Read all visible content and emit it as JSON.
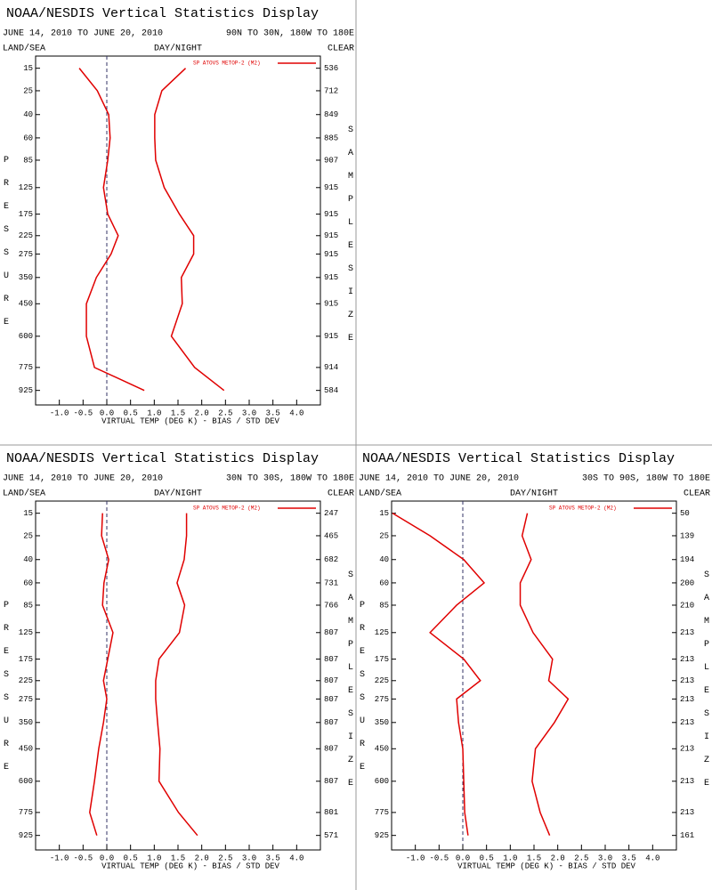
{
  "charts": [
    {
      "chart_data": {
        "type": "line",
        "title": "NOAA/NESDIS Vertical Statistics Display",
        "date_range": "JUNE 14, 2010 TO JUNE 20, 2010",
        "region": "90N TO 30N, 180W TO 180E",
        "land_sea": "LAND/SEA",
        "day_night": "DAY/NIGHT",
        "clear": "CLEAR",
        "ylabel": "PRESSURE",
        "y2label": "SAMPLE SIZE",
        "xlabel": "VIRTUAL TEMP (DEG K) - BIAS / STD DEV",
        "xlim": [
          -1.5,
          4.5
        ],
        "xticks": [
          {
            "value": -1,
            "label": "-1.0"
          },
          -0.5,
          {
            "value": 0,
            "label": "0.0"
          },
          0.5,
          {
            "value": 1,
            "label": "1.0"
          },
          1.5,
          {
            "value": 2,
            "label": "2.0"
          },
          2.5,
          {
            "value": 3,
            "label": "3.0"
          },
          3.5,
          {
            "value": 4,
            "label": "4.0"
          }
        ],
        "ylim": [
          11,
          1030
        ],
        "yticks": [
          15,
          25,
          40,
          60,
          85,
          125,
          175,
          225,
          275,
          350,
          450,
          600,
          775,
          925
        ],
        "sample_sizes": [
          536,
          712,
          849,
          885,
          907,
          915,
          915,
          915,
          915,
          915,
          915,
          915,
          914,
          584
        ],
        "series": [
          {
            "name": "SP ATOVS METOP-2 (M2)",
            "color": "#e00000",
            "values": [
              -0.58,
              -0.2,
              0.04,
              0.07,
              0.02,
              -0.07,
              0.02,
              0.24,
              0.09,
              -0.22,
              -0.43,
              -0.43,
              -0.26,
              0.79
            ]
          },
          {
            "color": "#e00000",
            "values": [
              1.66,
              1.16,
              1.01,
              1.01,
              1.03,
              1.21,
              1.53,
              1.83,
              1.83,
              1.57,
              1.59,
              1.36,
              1.85,
              2.47
            ]
          }
        ]
      }
    },
    {
      "chart_data": {
        "type": "line",
        "title": "NOAA/NESDIS Vertical Statistics Display",
        "date_range": "JUNE 14, 2010 TO JUNE 20, 2010",
        "region": "30N TO 30S, 180W TO 180E",
        "land_sea": "LAND/SEA",
        "day_night": "DAY/NIGHT",
        "clear": "CLEAR",
        "ylabel": "PRESSURE",
        "y2label": "SAMPLE SIZE",
        "xlabel": "VIRTUAL TEMP (DEG K) - BIAS / STD DEV",
        "xlim": [
          -1.5,
          4.5
        ],
        "xticks": [
          {
            "value": -1,
            "label": "-1.0"
          },
          -0.5,
          {
            "value": 0,
            "label": "0.0"
          },
          0.5,
          {
            "value": 1,
            "label": "1.0"
          },
          1.5,
          {
            "value": 2,
            "label": "2.0"
          },
          2.5,
          {
            "value": 3,
            "label": "3.0"
          },
          3.5,
          {
            "value": 4,
            "label": "4.0"
          }
        ],
        "ylim": [
          11,
          1030
        ],
        "yticks": [
          15,
          25,
          40,
          60,
          85,
          125,
          175,
          225,
          275,
          350,
          450,
          600,
          775,
          925
        ],
        "sample_sizes": [
          247,
          465,
          682,
          731,
          766,
          807,
          807,
          807,
          807,
          807,
          807,
          807,
          801,
          571
        ],
        "series": [
          {
            "name": "SP ATOVS METOP-2 (M2)",
            "color": "#e00000",
            "values": [
              -0.09,
              -0.11,
              0.04,
              -0.06,
              -0.09,
              0.13,
              0.02,
              -0.07,
              0,
              -0.07,
              -0.17,
              -0.26,
              -0.36,
              -0.21
            ]
          },
          {
            "color": "#e00000",
            "values": [
              1.68,
              1.68,
              1.63,
              1.48,
              1.64,
              1.53,
              1.1,
              1.03,
              1.03,
              1.07,
              1.12,
              1.1,
              1.51,
              1.91
            ]
          }
        ]
      }
    },
    {
      "chart_data": {
        "type": "line",
        "title": "NOAA/NESDIS Vertical Statistics Display",
        "date_range": "JUNE 14, 2010 TO JUNE 20, 2010",
        "region": "30S TO 90S, 180W TO 180E",
        "land_sea": "LAND/SEA",
        "day_night": "DAY/NIGHT",
        "clear": "CLEAR",
        "ylabel": "PRESSURE",
        "y2label": "SAMPLE SIZE",
        "xlabel": "VIRTUAL TEMP (DEG K) - BIAS / STD DEV",
        "xlim": [
          -1.5,
          4.5
        ],
        "xticks": [
          {
            "value": -1,
            "label": "-1.0"
          },
          -0.5,
          {
            "value": 0,
            "label": "0.0"
          },
          0.5,
          {
            "value": 1,
            "label": "1.0"
          },
          1.5,
          {
            "value": 2,
            "label": "2.0"
          },
          2.5,
          {
            "value": 3,
            "label": "3.0"
          },
          3.5,
          {
            "value": 4,
            "label": "4.0"
          }
        ],
        "ylim": [
          11,
          1030
        ],
        "yticks": [
          15,
          25,
          40,
          60,
          85,
          125,
          175,
          225,
          275,
          350,
          450,
          600,
          775,
          925
        ],
        "sample_sizes": [
          50,
          139,
          194,
          200,
          210,
          213,
          213,
          213,
          213,
          213,
          213,
          213,
          213,
          161
        ],
        "series": [
          {
            "name": "SP ATOVS METOP-2 (M2)",
            "color": "#e00000",
            "values": [
              -1.48,
              -0.69,
              0.02,
              0.45,
              -0.13,
              -0.69,
              0.02,
              0.37,
              -0.13,
              -0.09,
              0,
              0.02,
              0.04,
              0.11
            ]
          },
          {
            "color": "#e00000",
            "values": [
              1.36,
              1.25,
              1.44,
              1.21,
              1.21,
              1.48,
              1.89,
              1.81,
              2.22,
              1.93,
              1.53,
              1.46,
              1.63,
              1.83
            ]
          }
        ]
      }
    }
  ]
}
